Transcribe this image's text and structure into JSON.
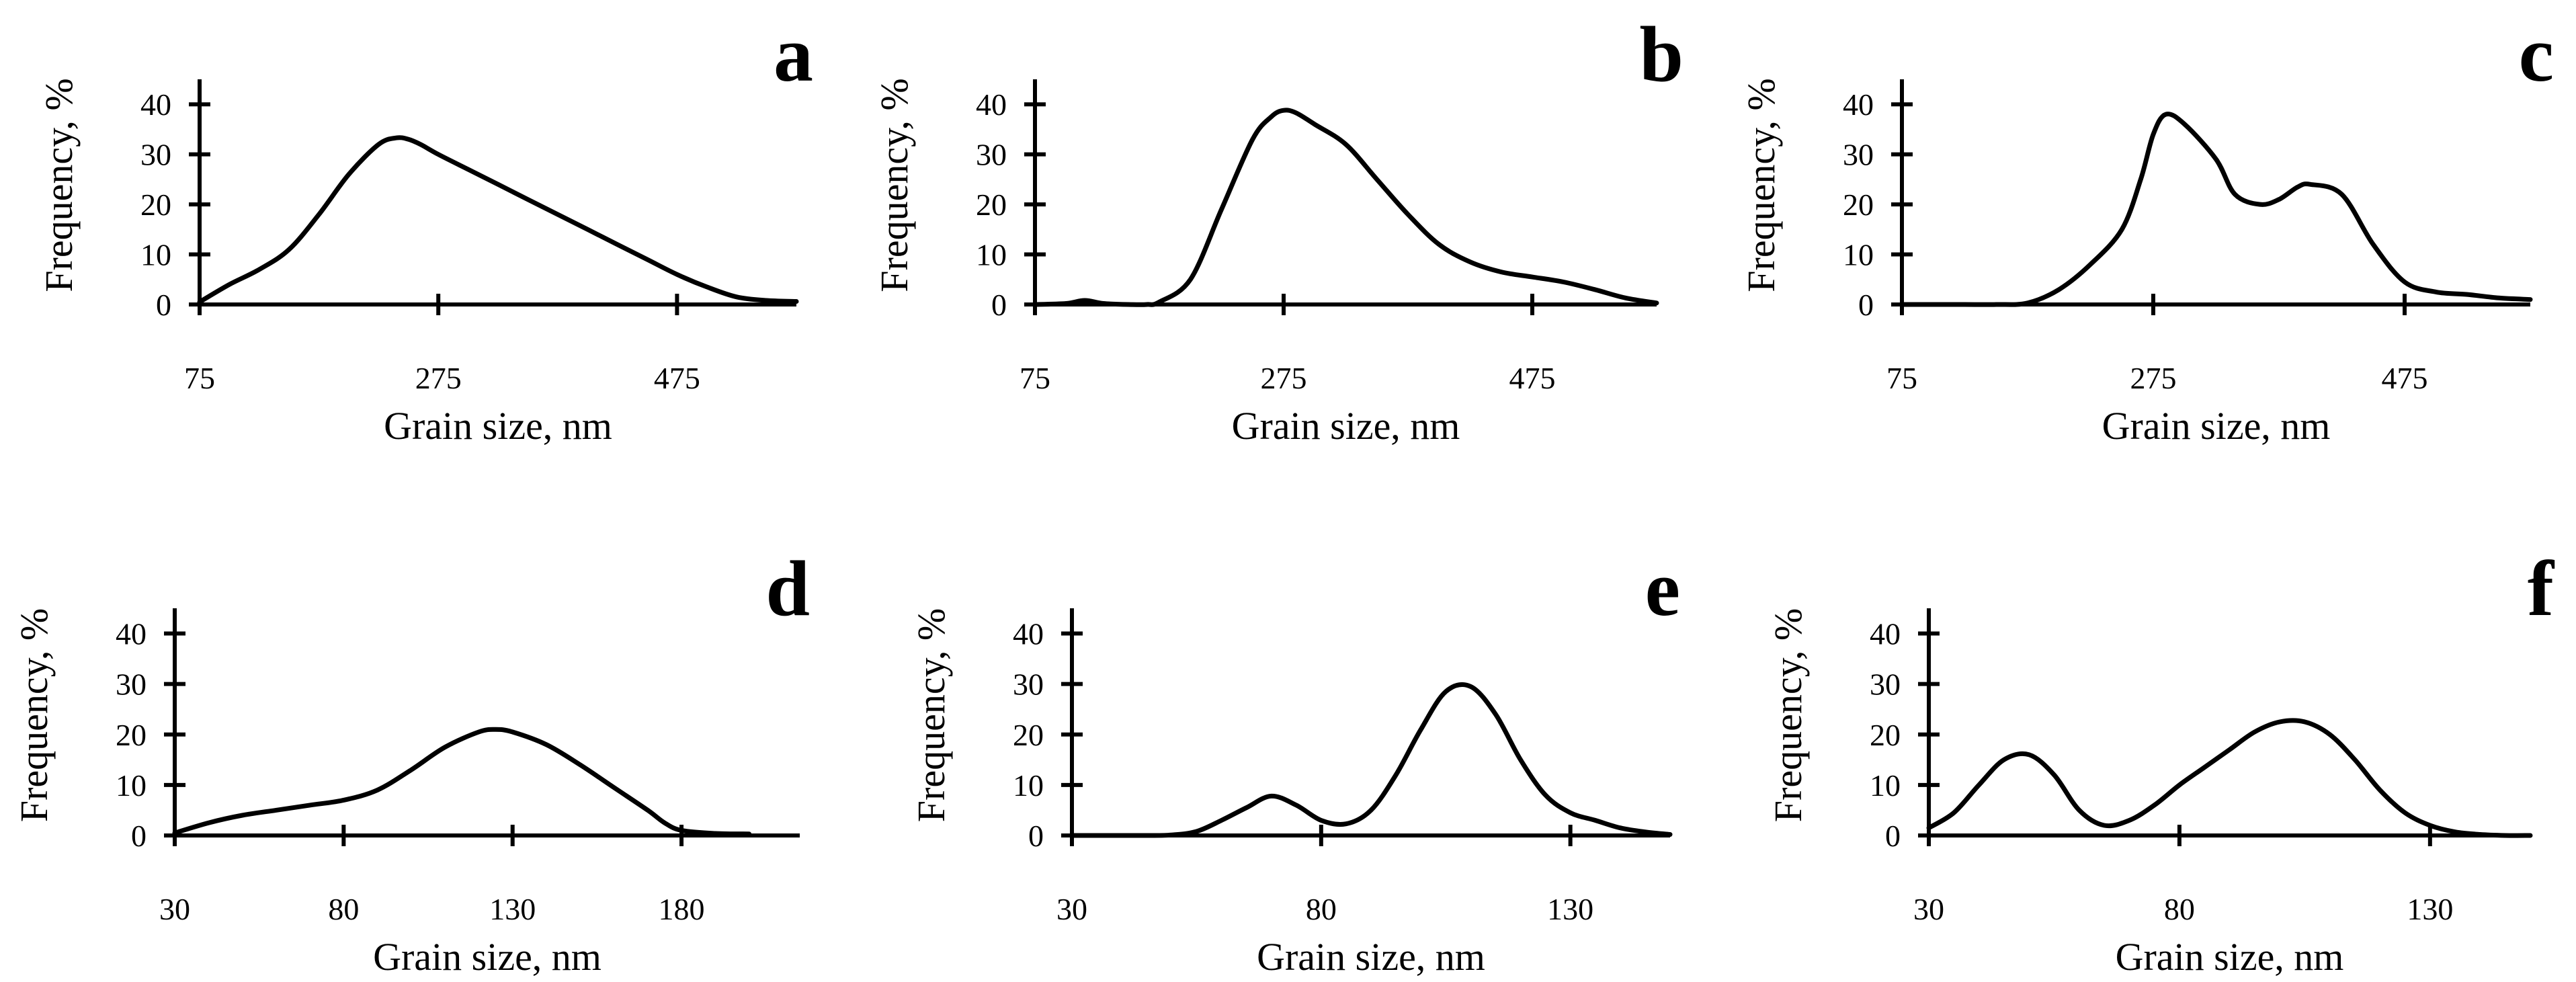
{
  "figure": {
    "background": "#ffffff",
    "line_color": "#000000"
  },
  "chart_data": [
    {
      "panel": "a",
      "type": "line",
      "xlabel": "Grain size, nm",
      "ylabel": "Frequency, %",
      "xlim": [
        75,
        575
      ],
      "ylim": [
        0,
        45
      ],
      "xticks": [
        75,
        275,
        475
      ],
      "yticks": [
        0,
        10,
        20,
        30,
        40
      ],
      "series": [
        {
          "name": "a",
          "x": [
            75,
            100,
            125,
            150,
            175,
            200,
            225,
            240,
            250,
            260,
            275,
            300,
            325,
            350,
            375,
            400,
            425,
            450,
            475,
            500,
            525,
            550,
            575
          ],
          "y": [
            0.5,
            4,
            7,
            11,
            18,
            26,
            32,
            33.3,
            33,
            32,
            30,
            27,
            24,
            21,
            18,
            15,
            12,
            9,
            6,
            3.5,
            1.5,
            0.8,
            0.6
          ]
        }
      ]
    },
    {
      "panel": "b",
      "type": "line",
      "xlabel": "Grain size, nm",
      "ylabel": "Frequency, %",
      "xlim": [
        75,
        575
      ],
      "ylim": [
        0,
        45
      ],
      "xticks": [
        75,
        275,
        475
      ],
      "yticks": [
        0,
        10,
        20,
        30,
        40
      ],
      "series": [
        {
          "name": "b",
          "x": [
            75,
            100,
            115,
            130,
            150,
            165,
            175,
            200,
            225,
            250,
            265,
            275,
            285,
            300,
            325,
            350,
            375,
            400,
            425,
            450,
            475,
            500,
            525,
            550,
            575
          ],
          "y": [
            0,
            0.2,
            0.8,
            0.2,
            0,
            0,
            0.5,
            5,
            19,
            33,
            37.5,
            38.8,
            38.3,
            36,
            32,
            25,
            18,
            12,
            8.5,
            6.5,
            5.5,
            4.5,
            3,
            1.3,
            0.3
          ]
        }
      ]
    },
    {
      "panel": "c",
      "type": "line",
      "xlabel": "Grain size, nm",
      "ylabel": "Frequency, %",
      "xlim": [
        75,
        575
      ],
      "ylim": [
        0,
        45
      ],
      "xticks": [
        75,
        275,
        475
      ],
      "yticks": [
        0,
        10,
        20,
        30,
        40
      ],
      "series": [
        {
          "name": "c",
          "x": [
            75,
            100,
            125,
            150,
            175,
            200,
            225,
            250,
            265,
            275,
            285,
            300,
            325,
            340,
            360,
            375,
            390,
            400,
            425,
            450,
            475,
            500,
            525,
            550,
            575
          ],
          "y": [
            0,
            0,
            0,
            0,
            0.3,
            3,
            8,
            15,
            25,
            34,
            38,
            36,
            29,
            22,
            20,
            21,
            23.5,
            24,
            22,
            12,
            4.5,
            2.5,
            2,
            1.3,
            1
          ]
        }
      ]
    },
    {
      "panel": "d",
      "type": "line",
      "xlabel": "Grain size, nm",
      "ylabel": "Frequency, %",
      "xlim": [
        30,
        215
      ],
      "ylim": [
        0,
        45
      ],
      "xticks": [
        30,
        80,
        130,
        180
      ],
      "yticks": [
        0,
        10,
        20,
        30,
        40
      ],
      "series": [
        {
          "name": "d",
          "x": [
            30,
            40,
            50,
            60,
            70,
            80,
            90,
            100,
            110,
            120,
            125,
            130,
            140,
            150,
            160,
            170,
            175,
            180,
            190,
            200
          ],
          "y": [
            0.5,
            2.5,
            4,
            5,
            6,
            7,
            9,
            13,
            17.5,
            20.5,
            21,
            20.5,
            18,
            14,
            9.5,
            5,
            2.5,
            1,
            0.4,
            0.3
          ]
        }
      ]
    },
    {
      "panel": "e",
      "type": "line",
      "xlabel": "Grain size, nm",
      "ylabel": "Frequency, %",
      "xlim": [
        30,
        150
      ],
      "ylim": [
        0,
        45
      ],
      "xticks": [
        30,
        80,
        130
      ],
      "yticks": [
        0,
        10,
        20,
        30,
        40
      ],
      "series": [
        {
          "name": "e",
          "x": [
            30,
            40,
            45,
            50,
            55,
            60,
            65,
            70,
            75,
            80,
            85,
            90,
            95,
            100,
            105,
            110,
            115,
            120,
            125,
            130,
            135,
            140,
            145,
            150
          ],
          "y": [
            0,
            0,
            0,
            0.1,
            0.8,
            3,
            5.5,
            7.8,
            6,
            3,
            2.3,
            5,
            12,
            21,
            28.5,
            29.5,
            24,
            15,
            8,
            4.5,
            3,
            1.5,
            0.7,
            0.2
          ]
        }
      ]
    },
    {
      "panel": "f",
      "type": "line",
      "xlabel": "Grain size, nm",
      "ylabel": "Frequency, %",
      "xlim": [
        30,
        150
      ],
      "ylim": [
        0,
        45
      ],
      "xticks": [
        30,
        80,
        130
      ],
      "yticks": [
        0,
        10,
        20,
        30,
        40
      ],
      "series": [
        {
          "name": "f",
          "x": [
            30,
            35,
            40,
            45,
            50,
            55,
            60,
            65,
            70,
            75,
            80,
            85,
            90,
            95,
            100,
            105,
            110,
            115,
            120,
            125,
            130,
            135,
            140,
            145,
            150
          ],
          "y": [
            1.5,
            4.5,
            10,
            15,
            16,
            12,
            5,
            2,
            3,
            6,
            10,
            13.5,
            17,
            20.5,
            22.5,
            22.5,
            20,
            15,
            9,
            4.5,
            2,
            0.7,
            0.2,
            0,
            0
          ]
        }
      ]
    }
  ]
}
